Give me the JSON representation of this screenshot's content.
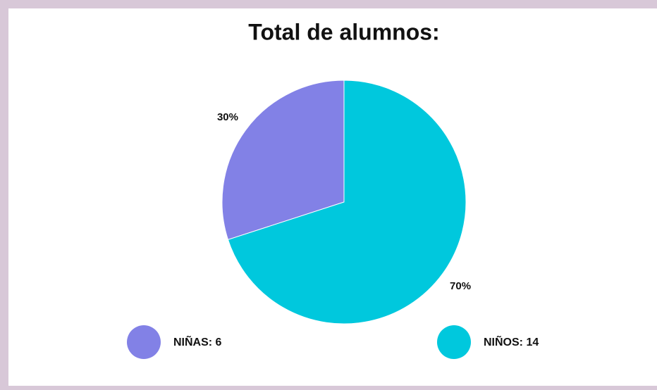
{
  "chart_data": {
    "type": "pie",
    "title": "Total de alumnos:",
    "categories": [
      "NIÑAS: 6",
      "NIÑOS: 14"
    ],
    "values": [
      30,
      70
    ],
    "value_labels": [
      "30%",
      "70%"
    ],
    "colors": [
      "#8281e6",
      "#00c8dd"
    ]
  }
}
